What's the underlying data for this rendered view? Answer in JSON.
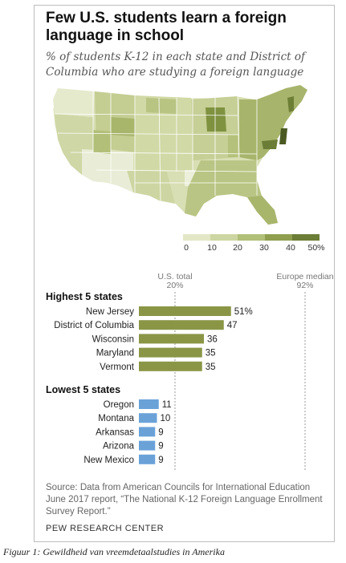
{
  "title": "Few U.S. students learn a foreign language in school",
  "subtitle": "% of students K-12 in each state and District of Columbia who are studying a foreign language",
  "legend": {
    "labels": [
      "0",
      "10",
      "20",
      "30",
      "40",
      "50%"
    ],
    "colors": [
      "#e3e7c6",
      "#cdd6a2",
      "#b1bf78",
      "#8f9f4f",
      "#6b7d36",
      "#4b5a22"
    ]
  },
  "reference_lines": {
    "us_total": {
      "label": "U.S. total",
      "value": 20,
      "value_label": "20%"
    },
    "europe_median": {
      "label": "Europe median",
      "value": 92,
      "value_label": "92%"
    }
  },
  "chart_data": {
    "type": "bar",
    "orientation": "horizontal",
    "groups": [
      {
        "name": "Highest 5 states",
        "color": "#8a9646",
        "categories": [
          "New Jersey",
          "District of Columbia",
          "Wisconsin",
          "Maryland",
          "Vermont"
        ],
        "values": [
          51,
          47,
          36,
          35,
          35
        ],
        "labels": [
          "51%",
          "47",
          "36",
          "35",
          "35"
        ]
      },
      {
        "name": "Lowest 5 states",
        "color": "#6aa2d8",
        "categories": [
          "Oregon",
          "Montana",
          "Arkansas",
          "Arizona",
          "New Mexico"
        ],
        "values": [
          11,
          10,
          9,
          9,
          9
        ],
        "labels": [
          "11",
          "10",
          "9",
          "9",
          "9"
        ]
      }
    ],
    "xlim": [
      0,
      100
    ]
  },
  "source": "Source: Data from American Councils for International Education June 2017 report, “The National K-12 Foreign Language Enrollment Survey Report.”",
  "brand": "PEW RESEARCH CENTER",
  "caption": "Figuur 1: Gewildheid van vreemdetaalstudies in Amerika"
}
